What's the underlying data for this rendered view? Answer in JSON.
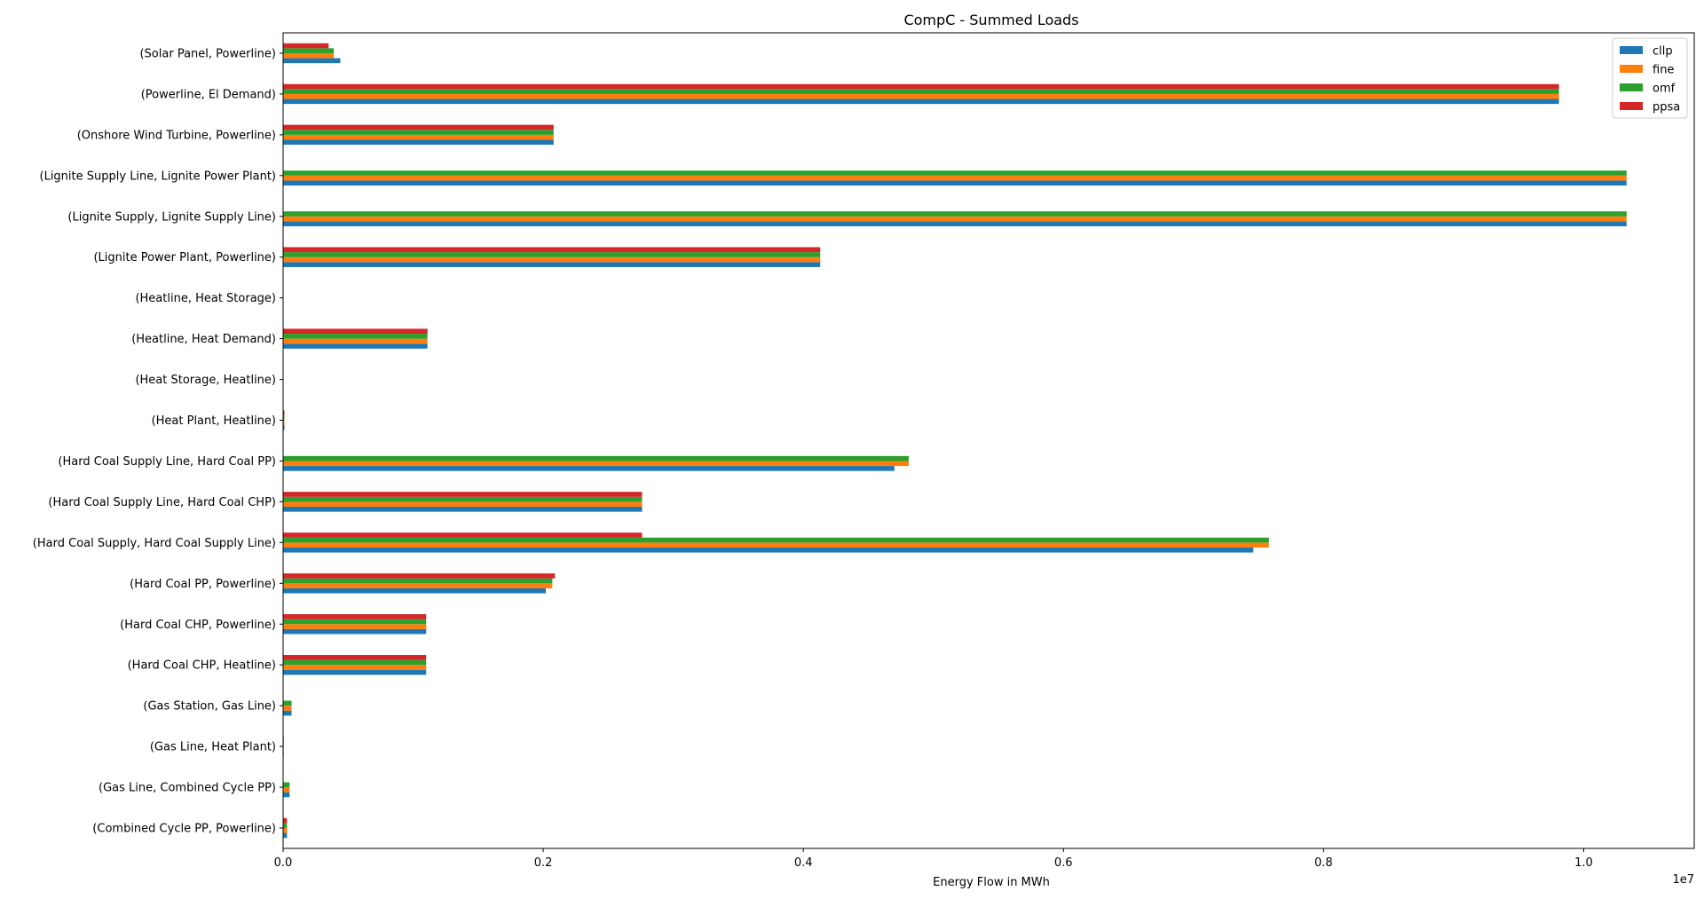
{
  "chart_data": {
    "type": "bar",
    "orientation": "horizontal",
    "title": "CompC -  Summed Loads",
    "xlabel": "Energy Flow in MWh",
    "ylabel": "",
    "x_scale_label": "1e7",
    "xlim": [
      0,
      1.085
    ],
    "xticks": [
      "0.0",
      "0.2",
      "0.4",
      "0.6",
      "0.8",
      "1.0"
    ],
    "xtick_values": [
      0,
      0.2,
      0.4,
      0.6,
      0.8,
      1.0
    ],
    "grid": false,
    "legend_position": "top-right",
    "categories": [
      "(Solar Panel, Powerline)",
      "(Powerline, El Demand)",
      "(Onshore Wind Turbine, Powerline)",
      "(Lignite Supply Line, Lignite Power Plant)",
      "(Lignite Supply, Lignite Supply Line)",
      "(Lignite Power Plant, Powerline)",
      "(Heatline, Heat Storage)",
      "(Heatline, Heat Demand)",
      "(Heat Storage, Heatline)",
      "(Heat Plant, Heatline)",
      "(Hard Coal Supply Line, Hard Coal PP)",
      "(Hard Coal Supply Line, Hard Coal CHP)",
      "(Hard Coal Supply, Hard Coal Supply Line)",
      "(Hard Coal PP, Powerline)",
      "(Hard Coal CHP, Powerline)",
      "(Hard Coal CHP, Heatline)",
      "(Gas Station, Gas Line)",
      "(Gas Line, Heat Plant)",
      "(Gas Line, Combined Cycle PP)",
      "(Combined Cycle PP, Powerline)"
    ],
    "series": [
      {
        "name": "cllp",
        "color": "#1f77b4",
        "values": [
          0.044,
          0.981,
          0.208,
          1.033,
          1.033,
          0.413,
          0.0,
          0.111,
          0.0,
          0.001,
          0.47,
          0.276,
          0.746,
          0.202,
          0.11,
          0.11,
          0.0065,
          0.0005,
          0.005,
          0.003
        ]
      },
      {
        "name": "fine",
        "color": "#ff7f0e",
        "values": [
          0.039,
          0.981,
          0.208,
          1.033,
          1.033,
          0.413,
          0.0,
          0.111,
          0.0,
          0.001,
          0.481,
          0.276,
          0.758,
          0.207,
          0.11,
          0.11,
          0.0065,
          0.0005,
          0.005,
          0.003
        ]
      },
      {
        "name": "omf",
        "color": "#2ca02c",
        "values": [
          0.039,
          0.981,
          0.208,
          1.033,
          1.033,
          0.413,
          0.0,
          0.111,
          0.0,
          0.001,
          0.481,
          0.276,
          0.758,
          0.207,
          0.11,
          0.11,
          0.0065,
          0.0005,
          0.005,
          0.003
        ]
      },
      {
        "name": "ppsa",
        "color": "#d62728",
        "values": [
          0.035,
          0.981,
          0.208,
          0.0,
          0.0,
          0.413,
          0.0,
          0.111,
          0.0,
          0.001,
          0.0,
          0.276,
          0.276,
          0.209,
          0.11,
          0.11,
          0.0,
          0.0005,
          0.0,
          0.003
        ]
      }
    ]
  }
}
